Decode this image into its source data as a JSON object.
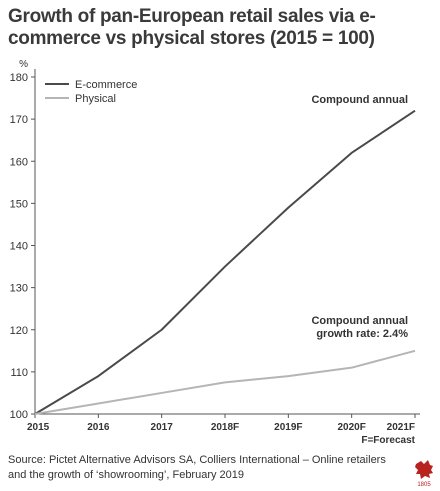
{
  "title": "Growth of pan-European retail sales via e-commerce vs physical stores (2015 = 100)",
  "source": "Source: Pictet Alternative Advisors SA, Colliers International – Online retailers and the growth of ‘showrooming’, February 2019",
  "logo_text": "1805",
  "colors": {
    "ecommerce": "#4a4a4a",
    "physical": "#b5b5b5",
    "axis": "#555555",
    "logo": "#b8231f"
  },
  "chart_data": {
    "type": "line",
    "categories": [
      "2015",
      "2016",
      "2017",
      "2018F",
      "2019F",
      "2020F",
      "2021F"
    ],
    "series": [
      {
        "name": "E-commerce",
        "values": [
          100,
          109,
          120,
          135,
          149,
          162,
          172
        ]
      },
      {
        "name": "Physical",
        "values": [
          100,
          102.5,
          105,
          107.5,
          109,
          111,
          115
        ]
      }
    ],
    "ylabel": "%",
    "ylim": [
      100,
      180
    ],
    "yticks": [
      100,
      110,
      120,
      130,
      140,
      150,
      160,
      170,
      180
    ],
    "forecast_note": "F=Forecast",
    "annotations": {
      "ecommerce": [
        "Compound annual"
      ],
      "physical": [
        "Compound annual",
        "growth rate: 2.4%"
      ]
    },
    "legend": "top-left",
    "grid": false
  }
}
